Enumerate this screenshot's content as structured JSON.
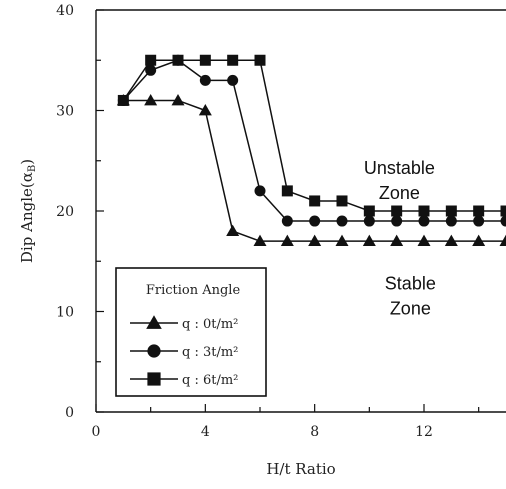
{
  "chart_data": {
    "type": "line",
    "xlabel": "H/t Ratio",
    "ylabel": "Dip Angle(α",
    "ylabel_subscript": "B",
    "ylabel_close": ")",
    "xlim": [
      0,
      15
    ],
    "ylim": [
      0,
      40
    ],
    "x_ticks": [
      0,
      4,
      8,
      12
    ],
    "y_ticks": [
      0,
      10,
      20,
      30,
      40
    ],
    "grid": false,
    "legend": {
      "title": "Friction Angle",
      "placement": "bottom-left"
    },
    "annotations": [
      {
        "lines": [
          "Unstable",
          "Zone"
        ],
        "x": 11.1,
        "y": 23.7
      },
      {
        "lines": [
          "Stable",
          "Zone"
        ],
        "x": 11.5,
        "y": 12.2
      }
    ],
    "series": [
      {
        "name": "q : 0t/m²",
        "marker": "triangle",
        "x": [
          1,
          2,
          3,
          4,
          5,
          6,
          7,
          8,
          9,
          10,
          11,
          12,
          13,
          14,
          15
        ],
        "values": [
          31,
          31,
          31,
          30,
          18,
          17,
          17,
          17,
          17,
          17,
          17,
          17,
          17,
          17,
          17
        ]
      },
      {
        "name": "q : 3t/m²",
        "marker": "circle",
        "x": [
          1,
          2,
          3,
          4,
          5,
          6,
          7,
          8,
          9,
          10,
          11,
          12,
          13,
          14,
          15
        ],
        "values": [
          31,
          34,
          35,
          33,
          33,
          22,
          19,
          19,
          19,
          19,
          19,
          19,
          19,
          19,
          19
        ]
      },
      {
        "name": "q : 6t/m²",
        "marker": "square",
        "x": [
          1,
          2,
          3,
          4,
          5,
          6,
          7,
          8,
          9,
          10,
          11,
          12,
          13,
          14,
          15
        ],
        "values": [
          31,
          35,
          35,
          35,
          35,
          35,
          22,
          21,
          21,
          20,
          20,
          20,
          20,
          20,
          20
        ]
      }
    ]
  }
}
